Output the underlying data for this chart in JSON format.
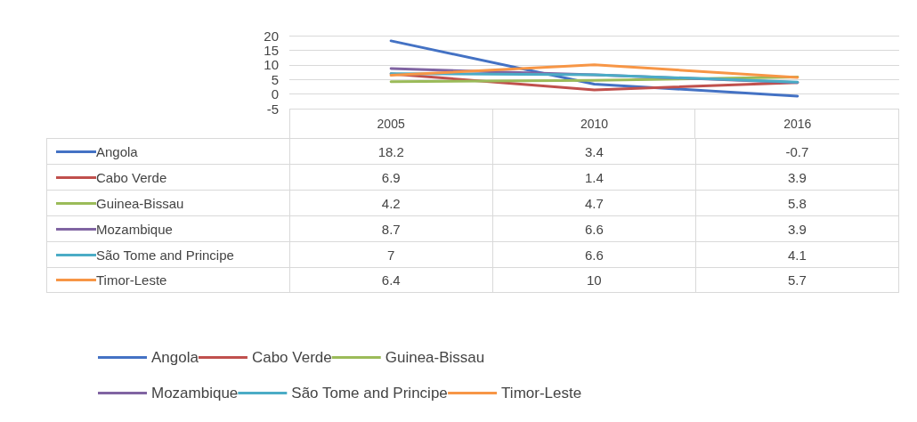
{
  "chart_data": {
    "type": "line",
    "categories": [
      "2005",
      "2010",
      "2016"
    ],
    "series": [
      {
        "name": "Angola",
        "color": "#4472c4",
        "values": [
          18.2,
          3.4,
          -0.7
        ]
      },
      {
        "name": "Cabo Verde",
        "color": "#c0504d",
        "values": [
          6.9,
          1.4,
          3.9
        ]
      },
      {
        "name": "Guinea-Bissau",
        "color": "#9bbb59",
        "values": [
          4.2,
          4.7,
          5.8
        ]
      },
      {
        "name": "Mozambique",
        "color": "#8064a2",
        "values": [
          8.7,
          6.6,
          3.9
        ]
      },
      {
        "name": "São Tome and Principe",
        "color": "#4bacc6",
        "values": [
          7,
          6.6,
          4.1
        ]
      },
      {
        "name": "Timor-Leste",
        "color": "#f79646",
        "values": [
          6.4,
          10,
          5.7
        ]
      }
    ],
    "ylim": [
      -5,
      20
    ],
    "yticks": [
      -5,
      0,
      5,
      10,
      15,
      20
    ],
    "grid": "y",
    "legend": "bottom",
    "data_labels": true,
    "marker": "none",
    "line_style": "solid"
  }
}
